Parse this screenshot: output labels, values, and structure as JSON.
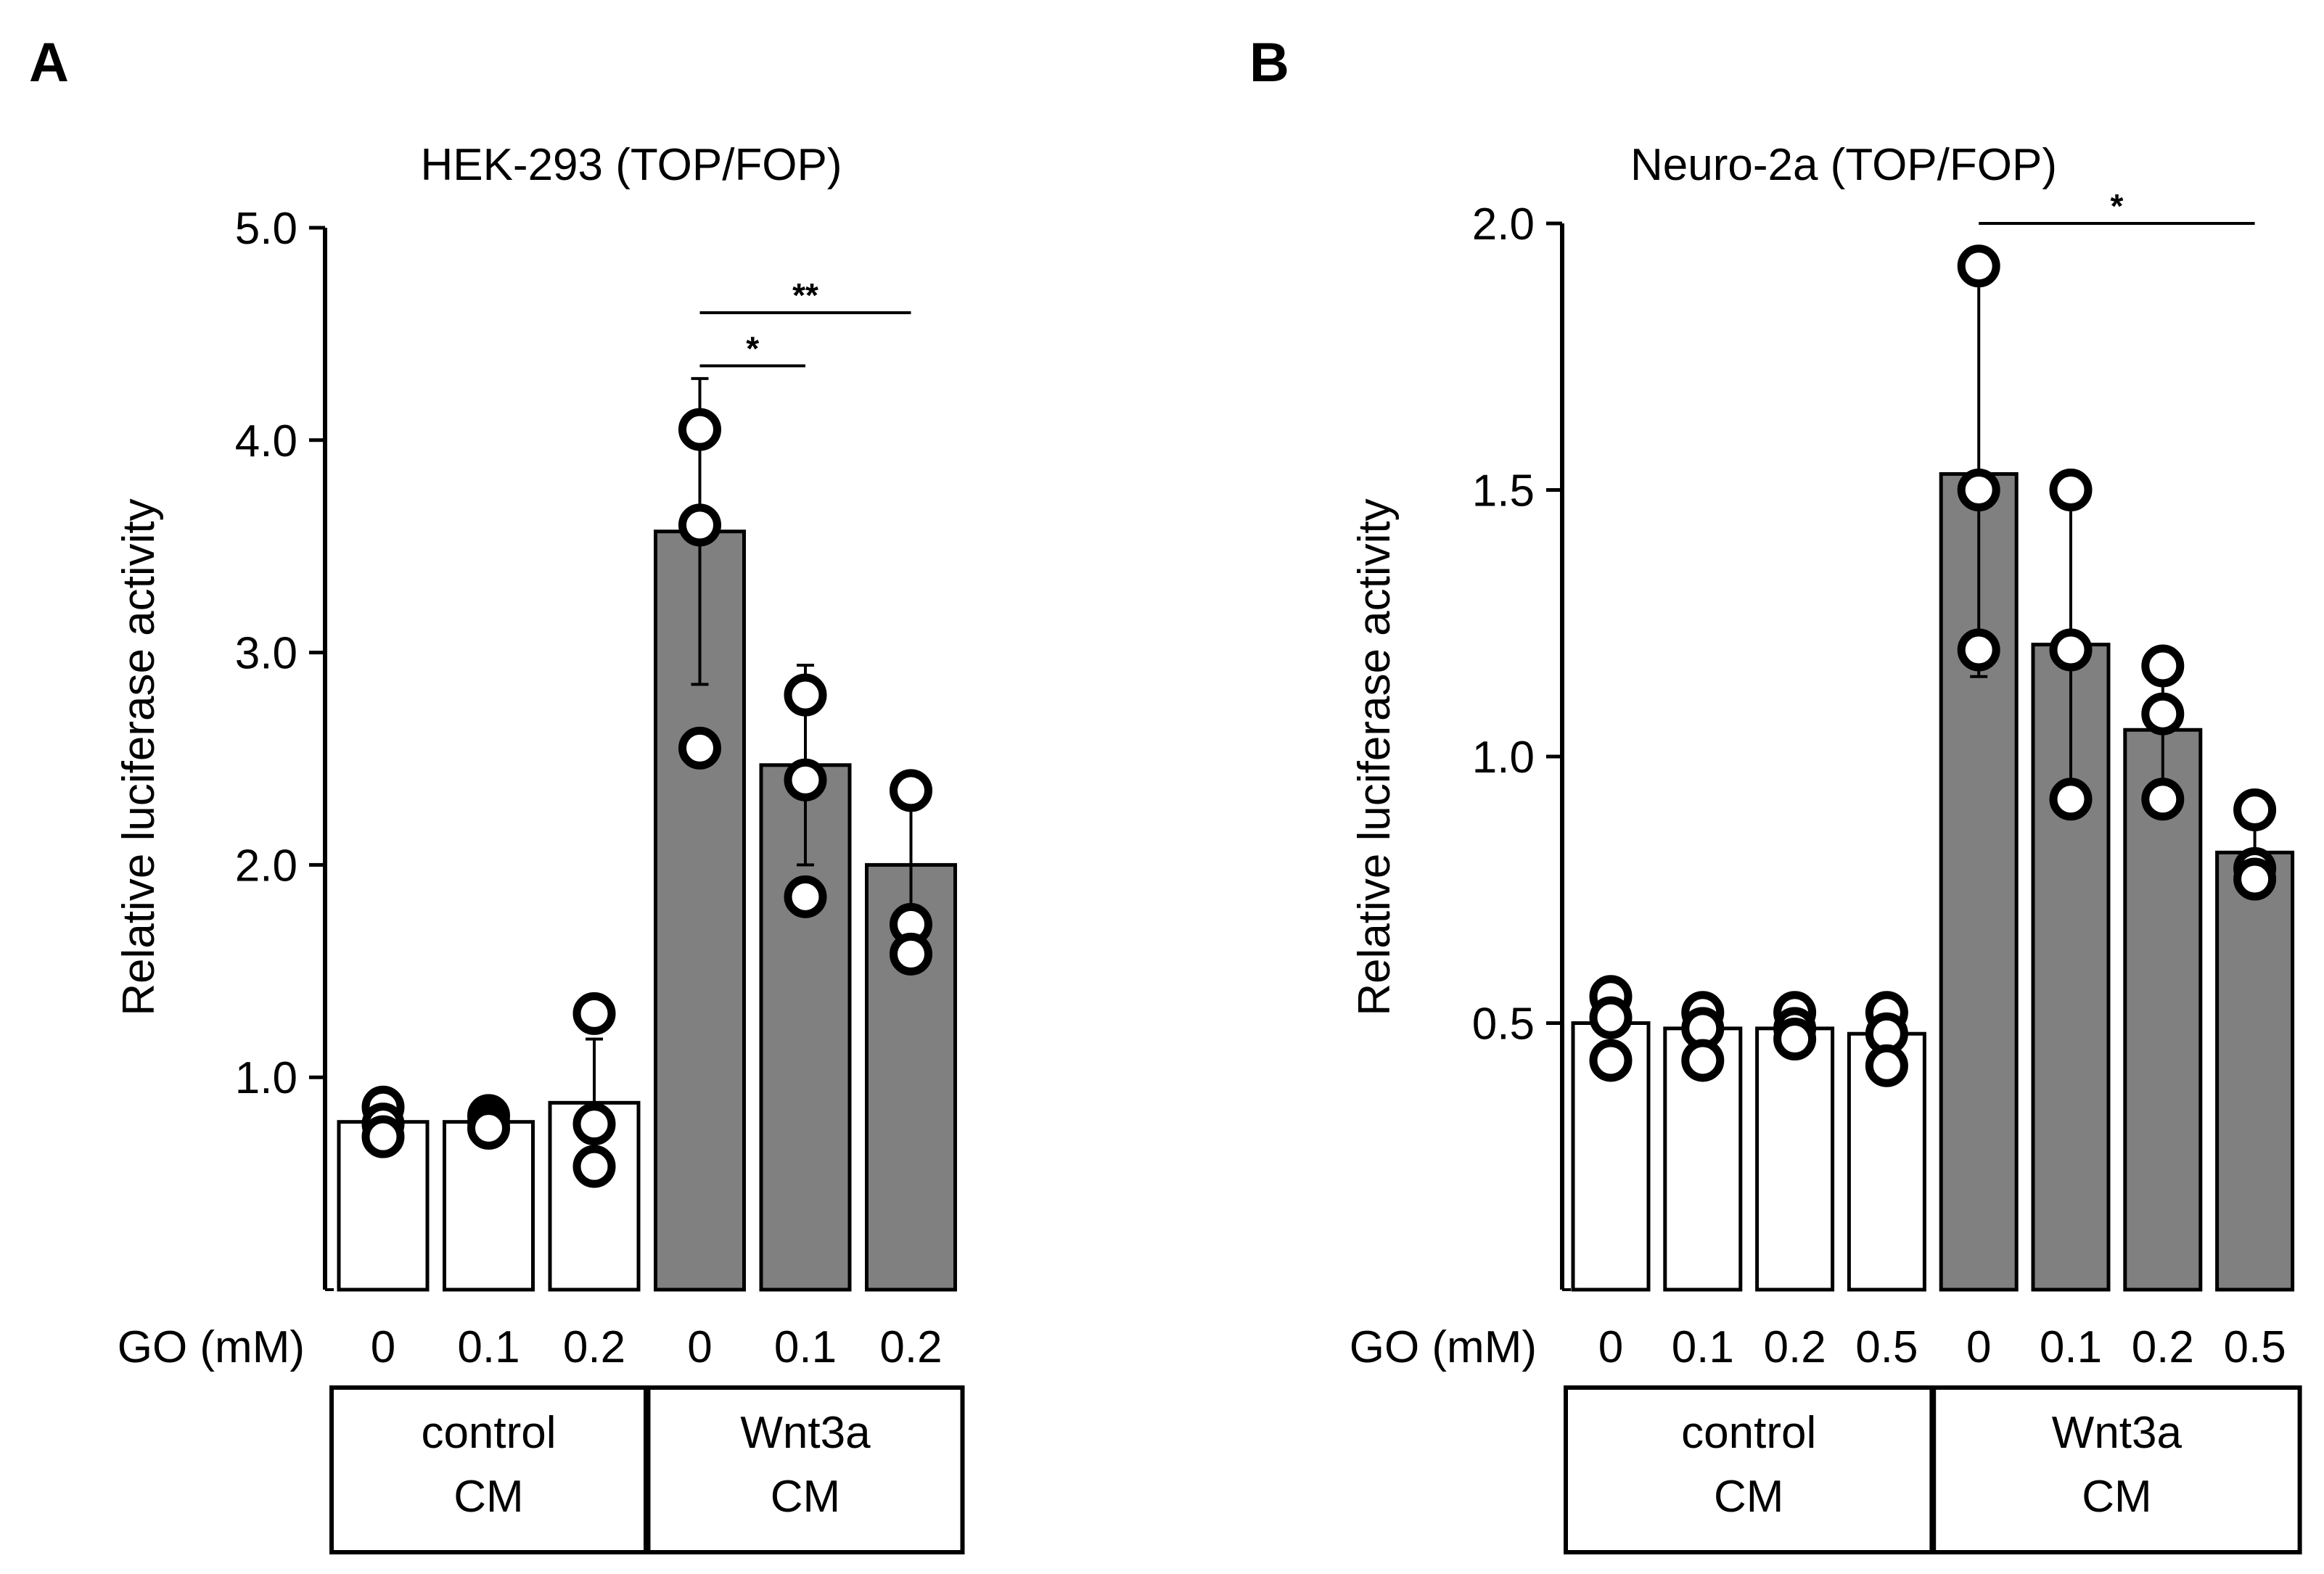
{
  "chart_data": [
    {
      "type": "bar",
      "panel": "A",
      "title": "HEK-293 (TOP/FOP)",
      "ylabel": "Relative luciferase activity",
      "xlabel": "GO (mM)",
      "ylim": [
        0,
        5.0
      ],
      "yticks": [
        "1.0",
        "2.0",
        "3.0",
        "4.0",
        "5.0"
      ],
      "categories": [
        "0",
        "0.1",
        "0.2",
        "0",
        "0.1",
        "0.2"
      ],
      "values": [
        0.79,
        0.79,
        0.88,
        3.57,
        2.47,
        2.0
      ],
      "error": [
        0.05,
        0.04,
        0.3,
        0.72,
        0.47,
        0.42
      ],
      "points": [
        [
          0.86,
          0.78,
          0.72
        ],
        [
          0.82,
          0.79,
          0.76
        ],
        [
          1.3,
          0.78,
          0.58
        ],
        [
          4.05,
          3.6,
          2.55
        ],
        [
          2.8,
          2.4,
          1.85
        ],
        [
          2.35,
          1.72,
          1.58
        ]
      ],
      "colors": [
        "#ffffff",
        "#ffffff",
        "#ffffff",
        "#808080",
        "#808080",
        "#808080"
      ],
      "groups": [
        {
          "label": [
            "control",
            "CM"
          ],
          "start": 0,
          "end": 2
        },
        {
          "label": [
            "Wnt3a",
            "CM"
          ],
          "start": 3,
          "end": 5
        }
      ],
      "significance": [
        {
          "from": 3,
          "to": 4,
          "y": 4.35,
          "label": "*"
        },
        {
          "from": 3,
          "to": 5,
          "y": 4.6,
          "label": "**"
        }
      ]
    },
    {
      "type": "bar",
      "panel": "B",
      "title": "Neuro-2a (TOP/FOP)",
      "ylabel": "Relative luciferase activity",
      "xlabel": "GO (mM)",
      "ylim": [
        0,
        2.0
      ],
      "yticks": [
        "0.5",
        "1.0",
        "1.5",
        "2.0"
      ],
      "categories": [
        "0",
        "0.1",
        "0.2",
        "0.5",
        "0",
        "0.1",
        "0.2",
        "0.5"
      ],
      "values": [
        0.5,
        0.49,
        0.49,
        0.48,
        1.53,
        1.21,
        1.05,
        0.82
      ],
      "error": [
        0.04,
        0.04,
        0.03,
        0.04,
        0.38,
        0.29,
        0.1,
        0.06
      ],
      "points": [
        [
          0.55,
          0.51,
          0.43
        ],
        [
          0.52,
          0.49,
          0.43
        ],
        [
          0.52,
          0.49,
          0.47
        ],
        [
          0.52,
          0.48,
          0.42
        ],
        [
          1.92,
          1.5,
          1.2
        ],
        [
          1.5,
          1.2,
          0.92
        ],
        [
          1.17,
          1.08,
          0.92
        ],
        [
          0.9,
          0.79,
          0.77
        ]
      ],
      "colors": [
        "#ffffff",
        "#ffffff",
        "#ffffff",
        "#ffffff",
        "#808080",
        "#808080",
        "#808080",
        "#808080"
      ],
      "groups": [
        {
          "label": [
            "control",
            "CM"
          ],
          "start": 0,
          "end": 3
        },
        {
          "label": [
            "Wnt3a",
            "CM"
          ],
          "start": 4,
          "end": 7
        }
      ],
      "significance": [
        {
          "from": 4,
          "to": 7,
          "y": 2.0,
          "label": "*"
        }
      ]
    }
  ]
}
